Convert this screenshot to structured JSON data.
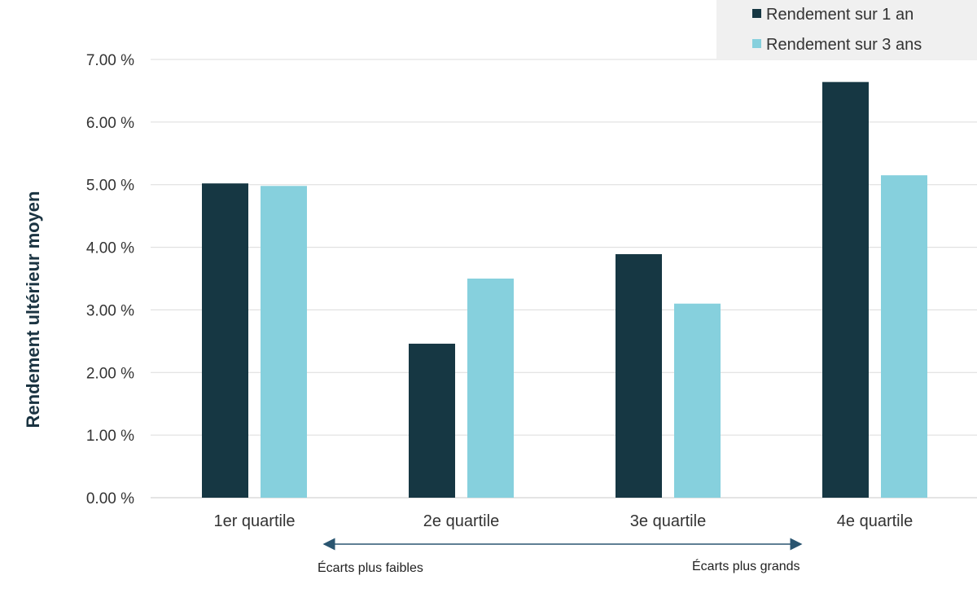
{
  "chart_data": {
    "type": "bar",
    "categories": [
      "1er quartile",
      "2e quartile",
      "3e quartile",
      "4e quartile"
    ],
    "series": [
      {
        "name": "Rendement sur 1 an",
        "values": [
          5.02,
          2.46,
          3.89,
          6.64
        ],
        "color": "#163743"
      },
      {
        "name": "Rendement sur 3 ans",
        "values": [
          4.98,
          3.5,
          3.1,
          5.15
        ],
        "color": "#86d0dd"
      }
    ],
    "ylabel": "Rendement ultérieur moyen",
    "ylim": [
      0,
      7
    ],
    "yticks": [
      "0.00 %",
      "1.00 %",
      "2.00 %",
      "3.00 %",
      "4.00 %",
      "5.00 %",
      "6.00 %",
      "7.00 %"
    ],
    "grid": true,
    "legend_position": "top-right",
    "annotations": {
      "left": "Écarts plus faibles",
      "right": "Écarts plus grands"
    }
  }
}
